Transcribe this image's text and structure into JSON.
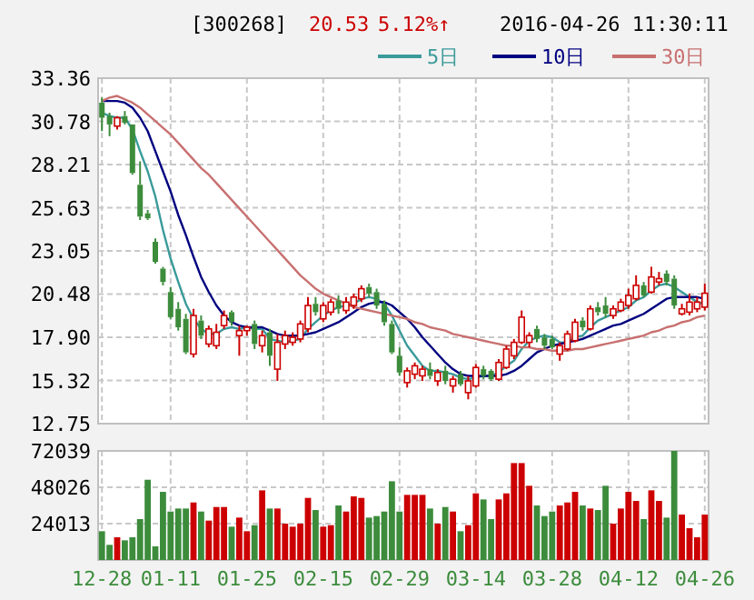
{
  "chart_data": [
    {
      "type": "candlestick",
      "title": "[300268]",
      "annotations": [
        "20.53",
        "5.12%↑",
        "2016-04-26 11:30:11"
      ],
      "categories": [
        null,
        null,
        null,
        null,
        null,
        null,
        null,
        null,
        null,
        null,
        null,
        null,
        null,
        null,
        null,
        null,
        null,
        null,
        null,
        null,
        null,
        null,
        null,
        null,
        null,
        null,
        null,
        null,
        null,
        null,
        null,
        null,
        null,
        null,
        null,
        null,
        null,
        null,
        null,
        null,
        null,
        null,
        null,
        null,
        null,
        null,
        null,
        null,
        null,
        null,
        null,
        null,
        null,
        null,
        null,
        null,
        null,
        null,
        null,
        null,
        null,
        null,
        null,
        null,
        null,
        null,
        null,
        null,
        null,
        null,
        null,
        null,
        null,
        null,
        null,
        null,
        null,
        null,
        null,
        null
      ],
      "ohlc": [
        [
          31.9,
          32.2,
          30.2,
          31.0
        ],
        [
          31.1,
          31.3,
          29.9,
          30.6
        ],
        [
          30.5,
          31.1,
          30.3,
          31.0
        ],
        [
          31.1,
          31.4,
          30.6,
          30.7
        ],
        [
          30.6,
          30.6,
          27.6,
          27.7
        ],
        [
          27.0,
          28.4,
          24.9,
          25.1
        ],
        [
          25.3,
          25.5,
          24.9,
          25.0
        ],
        [
          23.6,
          23.8,
          22.3,
          22.4
        ],
        [
          22.0,
          22.1,
          21.0,
          21.2
        ],
        [
          20.6,
          20.9,
          19.0,
          19.1
        ],
        [
          19.6,
          20.0,
          18.3,
          18.5
        ],
        [
          19.0,
          19.3,
          16.9,
          17.0
        ],
        [
          16.9,
          19.6,
          16.7,
          19.2
        ],
        [
          18.9,
          19.2,
          17.8,
          18.0
        ],
        [
          17.5,
          18.6,
          17.3,
          18.4
        ],
        [
          17.4,
          18.7,
          17.2,
          18.2
        ],
        [
          18.6,
          19.5,
          18.4,
          19.2
        ],
        [
          19.4,
          19.5,
          18.6,
          18.8
        ],
        [
          18.0,
          18.6,
          16.8,
          18.3
        ],
        [
          18.3,
          18.6,
          18.0,
          18.5
        ],
        [
          18.7,
          18.9,
          17.2,
          17.5
        ],
        [
          17.4,
          18.3,
          17.0,
          18.0
        ],
        [
          18.2,
          18.4,
          16.2,
          16.8
        ],
        [
          16.0,
          18.1,
          15.3,
          17.6
        ],
        [
          17.5,
          18.3,
          17.2,
          18.0
        ],
        [
          17.6,
          18.2,
          17.4,
          17.9
        ],
        [
          17.8,
          18.9,
          17.6,
          18.7
        ],
        [
          18.4,
          20.3,
          18.2,
          19.8
        ],
        [
          19.9,
          20.3,
          19.2,
          19.4
        ],
        [
          19.0,
          20.0,
          18.8,
          19.8
        ],
        [
          19.4,
          20.2,
          19.2,
          20.0
        ],
        [
          20.1,
          20.4,
          19.3,
          19.6
        ],
        [
          19.5,
          20.3,
          19.3,
          20.0
        ],
        [
          19.8,
          20.5,
          19.6,
          20.3
        ],
        [
          20.2,
          21.0,
          20.0,
          20.8
        ],
        [
          20.9,
          21.1,
          20.3,
          20.5
        ],
        [
          20.6,
          20.8,
          19.6,
          19.8
        ],
        [
          19.9,
          20.1,
          18.6,
          18.8
        ],
        [
          18.7,
          18.9,
          16.9,
          17.0
        ],
        [
          16.8,
          17.3,
          15.6,
          15.8
        ],
        [
          15.2,
          16.1,
          14.9,
          15.9
        ],
        [
          15.7,
          16.4,
          15.4,
          16.2
        ],
        [
          15.6,
          16.2,
          15.3,
          16.0
        ],
        [
          16.0,
          16.4,
          15.4,
          15.6
        ],
        [
          15.3,
          16.0,
          15.0,
          15.8
        ],
        [
          15.9,
          16.2,
          15.1,
          15.3
        ],
        [
          15.0,
          15.6,
          14.6,
          15.4
        ],
        [
          15.7,
          15.9,
          15.0,
          15.1
        ],
        [
          14.6,
          15.6,
          14.2,
          15.3
        ],
        [
          15.0,
          16.3,
          14.9,
          16.1
        ],
        [
          16.0,
          16.2,
          15.4,
          15.6
        ],
        [
          15.9,
          16.0,
          15.3,
          15.4
        ],
        [
          15.4,
          16.6,
          15.3,
          16.4
        ],
        [
          16.1,
          17.4,
          16.0,
          17.2
        ],
        [
          16.8,
          17.8,
          16.6,
          17.6
        ],
        [
          17.6,
          19.5,
          17.5,
          19.1
        ],
        [
          17.6,
          18.2,
          17.3,
          18.0
        ],
        [
          18.4,
          18.6,
          17.6,
          17.8
        ],
        [
          17.9,
          18.1,
          17.2,
          17.4
        ],
        [
          17.8,
          18.0,
          17.2,
          17.3
        ],
        [
          16.9,
          17.6,
          16.5,
          17.4
        ],
        [
          17.2,
          18.3,
          17.1,
          18.1
        ],
        [
          17.7,
          19.0,
          17.6,
          18.8
        ],
        [
          18.9,
          19.1,
          18.3,
          18.5
        ],
        [
          18.4,
          19.8,
          18.3,
          19.6
        ],
        [
          19.7,
          20.0,
          19.2,
          19.4
        ],
        [
          19.8,
          20.3,
          19.1,
          19.3
        ],
        [
          19.2,
          19.8,
          19.0,
          19.6
        ],
        [
          19.5,
          20.2,
          19.4,
          20.0
        ],
        [
          19.8,
          20.8,
          19.6,
          20.4
        ],
        [
          20.2,
          21.6,
          20.1,
          21.0
        ],
        [
          21.0,
          21.2,
          20.3,
          20.4
        ],
        [
          20.6,
          22.1,
          20.5,
          21.5
        ],
        [
          21.2,
          21.8,
          21.0,
          21.4
        ],
        [
          21.7,
          21.9,
          21.0,
          21.2
        ],
        [
          21.4,
          21.6,
          19.6,
          19.8
        ],
        [
          19.3,
          19.9,
          19.2,
          19.6
        ],
        [
          19.4,
          20.5,
          19.2,
          20.0
        ],
        [
          19.6,
          20.3,
          19.4,
          20.0
        ],
        [
          19.7,
          21.1,
          19.5,
          20.53
        ]
      ],
      "colors": [
        "#3c8c3c",
        "#3c8c3c",
        "#cc0000",
        "#3c8c3c",
        "#3c8c3c",
        "#3c8c3c",
        "#3c8c3c",
        "#3c8c3c",
        "#3c8c3c",
        "#3c8c3c",
        "#3c8c3c",
        "#3c8c3c",
        "#cc0000",
        "#3c8c3c",
        "#cc0000",
        "#cc0000",
        "#cc0000",
        "#3c8c3c",
        "#cc0000",
        "#cc0000",
        "#3c8c3c",
        "#cc0000",
        "#3c8c3c",
        "#cc0000",
        "#cc0000",
        "#cc0000",
        "#cc0000",
        "#cc0000",
        "#3c8c3c",
        "#cc0000",
        "#cc0000",
        "#3c8c3c",
        "#cc0000",
        "#cc0000",
        "#cc0000",
        "#3c8c3c",
        "#3c8c3c",
        "#3c8c3c",
        "#3c8c3c",
        "#3c8c3c",
        "#cc0000",
        "#cc0000",
        "#cc0000",
        "#3c8c3c",
        "#cc0000",
        "#3c8c3c",
        "#cc0000",
        "#3c8c3c",
        "#cc0000",
        "#cc0000",
        "#3c8c3c",
        "#3c8c3c",
        "#cc0000",
        "#cc0000",
        "#cc0000",
        "#cc0000",
        "#cc0000",
        "#3c8c3c",
        "#3c8c3c",
        "#3c8c3c",
        "#cc0000",
        "#cc0000",
        "#cc0000",
        "#3c8c3c",
        "#cc0000",
        "#3c8c3c",
        "#3c8c3c",
        "#cc0000",
        "#cc0000",
        "#cc0000",
        "#cc0000",
        "#3c8c3c",
        "#cc0000",
        "#cc0000",
        "#3c8c3c",
        "#3c8c3c",
        "#cc0000",
        "#cc0000",
        "#cc0000",
        "#cc0000"
      ],
      "series": [
        {
          "name": "5日",
          "type": "line",
          "color": "#3a9a9a",
          "values": [
            31.3,
            31.1,
            31.0,
            31.0,
            30.3,
            29.0,
            27.8,
            26.3,
            24.3,
            22.6,
            21.2,
            19.9,
            19.0,
            18.4,
            18.1,
            18.1,
            18.4,
            18.5,
            18.4,
            18.5,
            18.4,
            18.4,
            17.8,
            17.7,
            17.6,
            17.7,
            17.8,
            18.4,
            18.8,
            19.2,
            19.5,
            19.7,
            19.8,
            19.9,
            20.2,
            20.3,
            20.2,
            19.9,
            19.2,
            18.3,
            17.4,
            16.8,
            16.2,
            15.9,
            15.9,
            15.8,
            15.7,
            15.5,
            15.4,
            15.5,
            15.6,
            15.6,
            15.8,
            16.2,
            16.5,
            17.2,
            17.7,
            17.9,
            18.0,
            17.9,
            17.6,
            17.6,
            17.9,
            18.0,
            18.5,
            18.9,
            19.1,
            19.3,
            19.5,
            19.7,
            20.1,
            20.3,
            20.7,
            21.0,
            21.1,
            20.9,
            20.6,
            20.3,
            20.0,
            19.9
          ]
        },
        {
          "name": "10日",
          "type": "line",
          "color": "#000080",
          "values": [
            32.0,
            32.0,
            32.0,
            31.9,
            31.6,
            31.0,
            30.2,
            29.0,
            27.8,
            26.6,
            25.2,
            24.0,
            22.7,
            21.5,
            20.6,
            19.8,
            19.2,
            18.8,
            18.6,
            18.5,
            18.5,
            18.5,
            18.3,
            18.1,
            18.0,
            18.0,
            18.0,
            18.1,
            18.2,
            18.4,
            18.6,
            18.8,
            19.1,
            19.4,
            19.7,
            19.9,
            20.0,
            20.0,
            19.8,
            19.4,
            19.0,
            18.5,
            17.9,
            17.4,
            16.9,
            16.4,
            16.0,
            15.7,
            15.6,
            15.6,
            15.6,
            15.6,
            15.6,
            15.7,
            15.9,
            16.2,
            16.6,
            17.0,
            17.2,
            17.4,
            17.5,
            17.6,
            17.7,
            17.8,
            18.0,
            18.2,
            18.4,
            18.6,
            18.7,
            18.9,
            19.1,
            19.3,
            19.6,
            19.9,
            20.2,
            20.3,
            20.3,
            20.3,
            20.3,
            20.2
          ]
        },
        {
          "name": "30日",
          "type": "line",
          "color": "#c87070",
          "values": [
            32.0,
            32.2,
            32.3,
            32.1,
            31.9,
            31.6,
            31.2,
            30.8,
            30.4,
            30.0,
            29.5,
            29.0,
            28.5,
            28.0,
            27.6,
            27.1,
            26.6,
            26.1,
            25.6,
            25.1,
            24.6,
            24.1,
            23.6,
            23.1,
            22.6,
            22.1,
            21.6,
            21.2,
            20.8,
            20.5,
            20.3,
            20.1,
            19.9,
            19.7,
            19.6,
            19.5,
            19.4,
            19.3,
            19.2,
            19.1,
            19.0,
            18.8,
            18.7,
            18.5,
            18.4,
            18.3,
            18.1,
            18.0,
            17.9,
            17.8,
            17.7,
            17.6,
            17.5,
            17.4,
            17.4,
            17.3,
            17.3,
            17.2,
            17.2,
            17.1,
            17.1,
            17.1,
            17.2,
            17.2,
            17.3,
            17.4,
            17.5,
            17.6,
            17.7,
            17.8,
            17.9,
            18.0,
            18.2,
            18.3,
            18.5,
            18.6,
            18.8,
            18.9,
            19.1,
            19.2
          ]
        }
      ],
      "ylim": [
        12.75,
        33.36
      ],
      "yticks": [
        12.75,
        15.32,
        {
          "value": 17.9,
          "label": "17.90"
        },
        20.48,
        23.05,
        25.63,
        28.21,
        30.78,
        33.36
      ],
      "grid": true,
      "legend": "top right"
    },
    {
      "type": "bar",
      "categories": [
        "12-28",
        null,
        null,
        null,
        null,
        null,
        null,
        null,
        null,
        "01-11",
        null,
        null,
        null,
        null,
        null,
        null,
        null,
        null,
        null,
        "01-25",
        null,
        null,
        null,
        null,
        null,
        null,
        null,
        null,
        null,
        "02-15",
        null,
        null,
        null,
        null,
        null,
        null,
        null,
        null,
        null,
        "02-29",
        null,
        null,
        null,
        null,
        null,
        null,
        null,
        null,
        null,
        "03-14",
        null,
        null,
        null,
        null,
        null,
        null,
        null,
        null,
        null,
        "03-28",
        null,
        null,
        null,
        null,
        null,
        null,
        null,
        null,
        null,
        "04-12",
        null,
        null,
        null,
        null,
        null,
        null,
        null,
        null,
        null,
        "04-26"
      ],
      "values": [
        19000,
        10000,
        15000,
        13000,
        15000,
        27000,
        53000,
        9000,
        45000,
        32000,
        34000,
        34000,
        38000,
        32000,
        26000,
        35000,
        35000,
        22000,
        28000,
        19000,
        23000,
        46000,
        34000,
        34000,
        24000,
        22000,
        24000,
        41000,
        33000,
        22000,
        23000,
        36000,
        32000,
        42000,
        41000,
        28000,
        29000,
        32000,
        52000,
        32000,
        43000,
        43000,
        43000,
        34000,
        24000,
        35000,
        32000,
        19000,
        23000,
        44000,
        40000,
        27000,
        40000,
        44000,
        64000,
        64000,
        49000,
        36000,
        29000,
        32000,
        36000,
        38000,
        45000,
        36000,
        34000,
        33000,
        49000,
        24000,
        34000,
        45000,
        39000,
        27000,
        46000,
        39000,
        28000,
        72039,
        30000,
        21000,
        15000,
        30000
      ],
      "colors": [
        "#3c8c3c",
        "#3c8c3c",
        "#cc0000",
        "#3c8c3c",
        "#3c8c3c",
        "#3c8c3c",
        "#3c8c3c",
        "#3c8c3c",
        "#3c8c3c",
        "#3c8c3c",
        "#3c8c3c",
        "#3c8c3c",
        "#cc0000",
        "#3c8c3c",
        "#cc0000",
        "#cc0000",
        "#cc0000",
        "#3c8c3c",
        "#cc0000",
        "#cc0000",
        "#3c8c3c",
        "#cc0000",
        "#3c8c3c",
        "#cc0000",
        "#cc0000",
        "#cc0000",
        "#cc0000",
        "#cc0000",
        "#3c8c3c",
        "#cc0000",
        "#cc0000",
        "#3c8c3c",
        "#cc0000",
        "#cc0000",
        "#cc0000",
        "#3c8c3c",
        "#3c8c3c",
        "#3c8c3c",
        "#3c8c3c",
        "#3c8c3c",
        "#cc0000",
        "#cc0000",
        "#cc0000",
        "#3c8c3c",
        "#cc0000",
        "#3c8c3c",
        "#cc0000",
        "#3c8c3c",
        "#cc0000",
        "#cc0000",
        "#3c8c3c",
        "#3c8c3c",
        "#cc0000",
        "#cc0000",
        "#cc0000",
        "#cc0000",
        "#cc0000",
        "#3c8c3c",
        "#3c8c3c",
        "#3c8c3c",
        "#cc0000",
        "#cc0000",
        "#cc0000",
        "#3c8c3c",
        "#cc0000",
        "#3c8c3c",
        "#3c8c3c",
        "#cc0000",
        "#cc0000",
        "#cc0000",
        "#cc0000",
        "#3c8c3c",
        "#cc0000",
        "#cc0000",
        "#3c8c3c",
        "#3c8c3c",
        "#cc0000",
        "#cc0000",
        "#cc0000",
        "#cc0000"
      ],
      "ylim": [
        0,
        72039
      ],
      "yticks": [
        24013,
        48026,
        72039
      ],
      "grid": true
    }
  ]
}
